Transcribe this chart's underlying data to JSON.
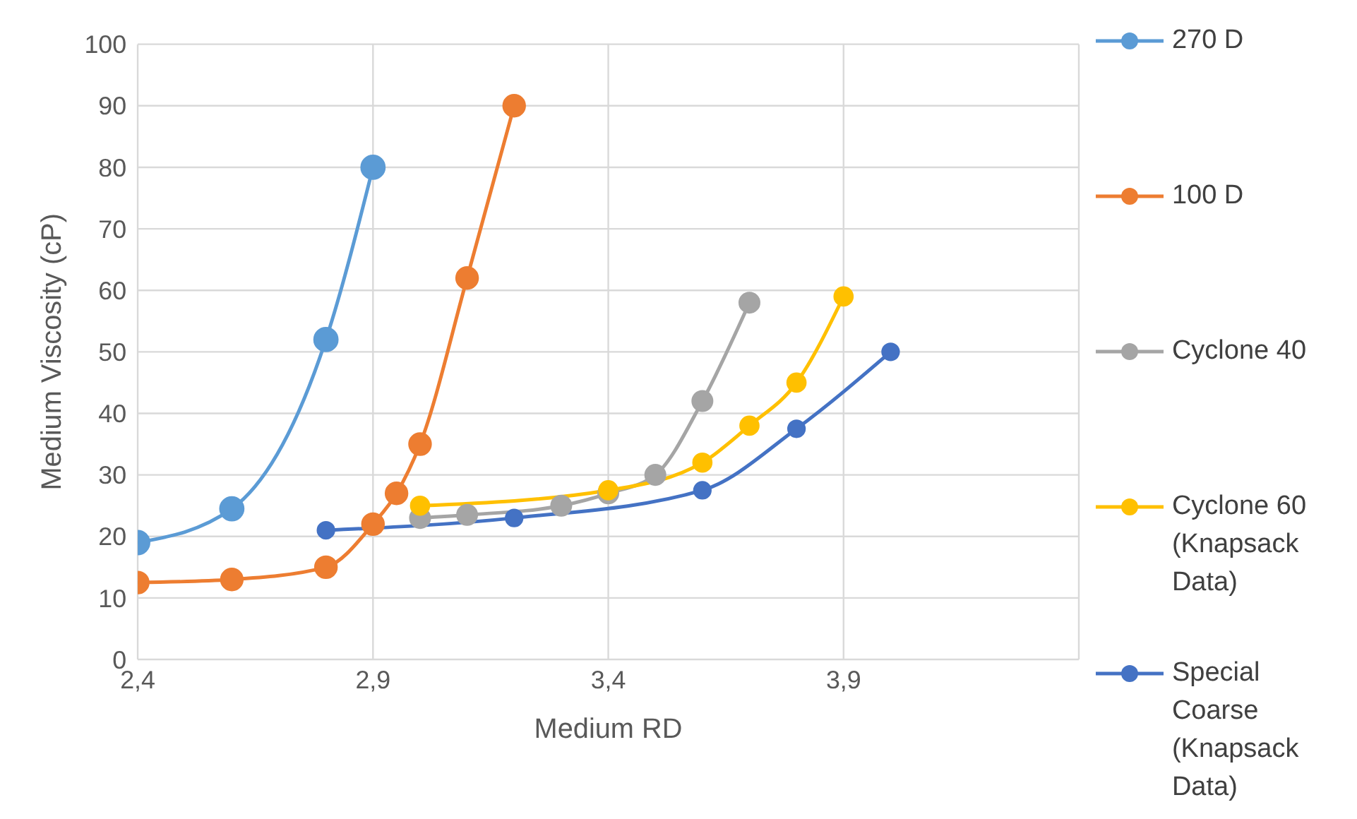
{
  "chart_data": {
    "type": "line",
    "xlabel": "Medium RD",
    "ylabel": "Medium Viscosity (cP)",
    "xlim": [
      2.4,
      4.4
    ],
    "xticks": [
      {
        "value": 2.4,
        "label": "2,4"
      },
      {
        "value": 2.9,
        "label": "2,9"
      },
      {
        "value": 3.4,
        "label": "3,4"
      },
      {
        "value": 3.9,
        "label": "3,9"
      },
      {
        "value": 4.4,
        "label": null
      }
    ],
    "ylim": [
      0,
      100
    ],
    "yticks": [
      0,
      10,
      20,
      30,
      40,
      50,
      60,
      70,
      80,
      90,
      100
    ],
    "grid": true,
    "legend": "right",
    "marker": "circle",
    "line_style": "solid",
    "series": [
      {
        "name": "270 D",
        "color": "#5b9bd5",
        "x": [
          2.4,
          2.6,
          2.8,
          2.9
        ],
        "values": [
          19,
          24.5,
          52,
          80
        ]
      },
      {
        "name": "100 D",
        "color": "#ed7d31",
        "x": [
          2.4,
          2.6,
          2.8,
          2.9,
          2.95,
          3.0,
          3.1,
          3.2
        ],
        "values": [
          12.5,
          13,
          15,
          22,
          27,
          35,
          62,
          90
        ]
      },
      {
        "name": "Cyclone 40",
        "color": "#a5a5a5",
        "x": [
          3.0,
          3.1,
          3.3,
          3.4,
          3.5,
          3.6,
          3.7
        ],
        "values": [
          23,
          23.5,
          25,
          27,
          30,
          42,
          58
        ]
      },
      {
        "name": "Cyclone 60 (Knapsack Data)",
        "color": "#ffc000",
        "x": [
          3.0,
          3.4,
          3.6,
          3.7,
          3.8,
          3.9
        ],
        "values": [
          25,
          27.5,
          32,
          38,
          45,
          59
        ]
      },
      {
        "name": "Special Coarse (Knapsack Data)",
        "color": "#4472c4",
        "x": [
          2.8,
          3.2,
          3.6,
          3.8,
          4.0
        ],
        "values": [
          21,
          23,
          27.5,
          37.5,
          50
        ]
      }
    ]
  }
}
